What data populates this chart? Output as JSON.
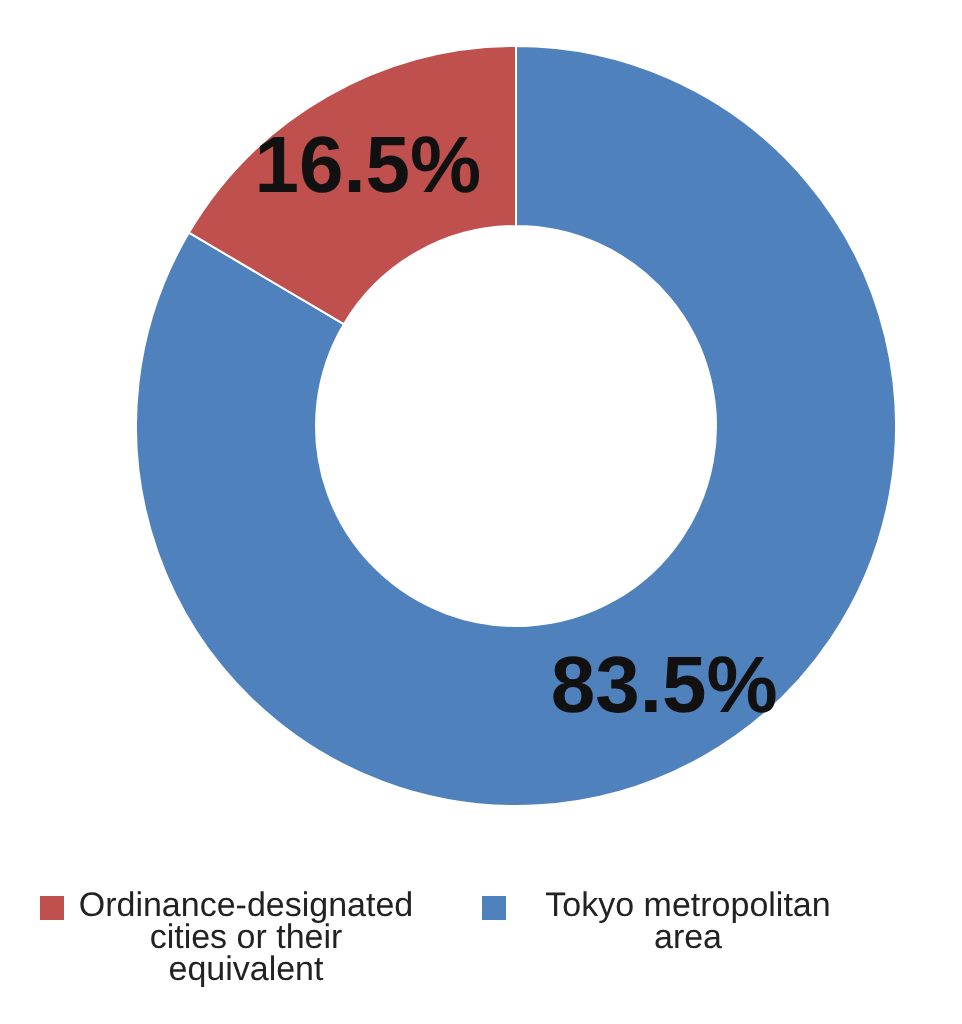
{
  "chart_data": {
    "type": "donut",
    "categories": [
      "Tokyo metropolitan area",
      "Ordinance-designated cities or their equivalent"
    ],
    "values": [
      83.5,
      16.5
    ],
    "colors": [
      "#4f81bd",
      "#c0504d"
    ],
    "value_labels": [
      "83.5%",
      "16.5%"
    ],
    "legend": "bottom"
  }
}
